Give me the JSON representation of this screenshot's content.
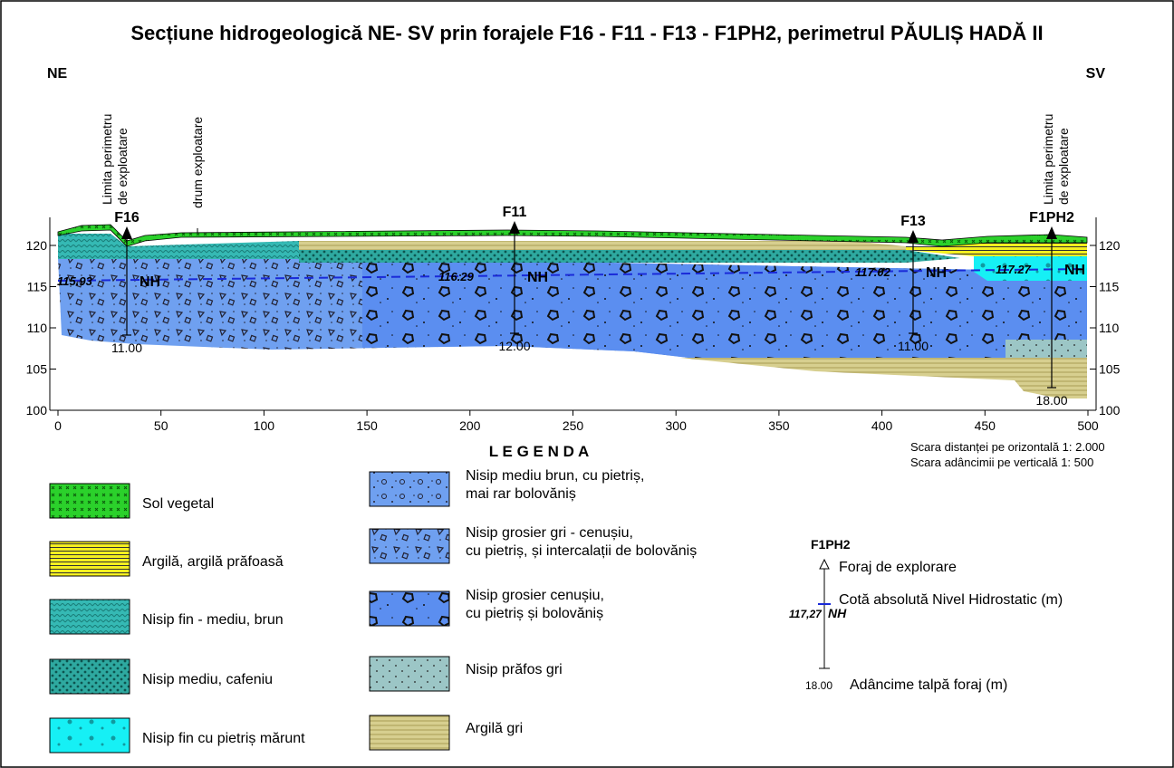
{
  "title": "Secțiune hidrogeologică NE- SV prin forajele F16 - F11 - F13 - F1PH2, perimetrul PĂULIȘ HADĂ II",
  "directions": {
    "left": "NE",
    "right": "SV"
  },
  "annotations": {
    "limit_left": [
      "Limita perimetru",
      "de exploatare"
    ],
    "road": "drum exploatare",
    "limit_right": [
      "Limita perimetru",
      "de exploatare"
    ]
  },
  "axes": {
    "x": {
      "lim": [
        0,
        500
      ],
      "ticks": [
        0,
        50,
        100,
        150,
        200,
        250,
        300,
        350,
        400,
        450,
        500
      ]
    },
    "y": {
      "lim": [
        100,
        120
      ],
      "ticks": [
        100,
        105,
        110,
        115,
        120
      ]
    }
  },
  "boreholes": [
    {
      "name": "F16",
      "depth": "11.00",
      "nh": "115.93",
      "nh_label": "NH"
    },
    {
      "name": "F11",
      "depth": "12.00",
      "nh": "116.29",
      "nh_label": "NH"
    },
    {
      "name": "F13",
      "depth": "11.00",
      "nh": "117.02",
      "nh_label": "NH"
    },
    {
      "name": "F1PH2",
      "depth": "18.00",
      "nh": "117.27",
      "nh_label": "NH"
    }
  ],
  "legend": {
    "title": "L E G E N D A",
    "items": [
      [
        "Sol vegetal"
      ],
      [
        "Argilă, argilă prăfoasă"
      ],
      [
        "Nisip fin - mediu,  brun"
      ],
      [
        "Nisip mediu,  cafeniu"
      ],
      [
        "Nisip fin cu pietriș mărunt"
      ],
      [
        "Nisip mediu brun, cu pietriș,",
        " mai rar bolovăniș"
      ],
      [
        "Nisip grosier gri - cenușiu,",
        "cu pietriș, și intercalații de  bolovăniș"
      ],
      [
        "Nisip grosier cenușiu,",
        "cu pietriș și bolovăniș"
      ],
      [
        "Nisip prăfos gri"
      ],
      [
        "Argilă gri"
      ]
    ]
  },
  "scale_notes": [
    "Scara distanței pe orizontală 1: 2.000",
    "Scara adâncimii pe verticală  1: 500"
  ],
  "key": {
    "borehole_name": "F1PH2",
    "borehole": "Foraj de explorare",
    "nh": "Cotă absolută Nivel Hidrostatic (m)",
    "nh_value": "117,27",
    "nh_label": "NH",
    "depth_value": "18.00",
    "depth": "Adâncime talpă foraj (m)"
  }
}
